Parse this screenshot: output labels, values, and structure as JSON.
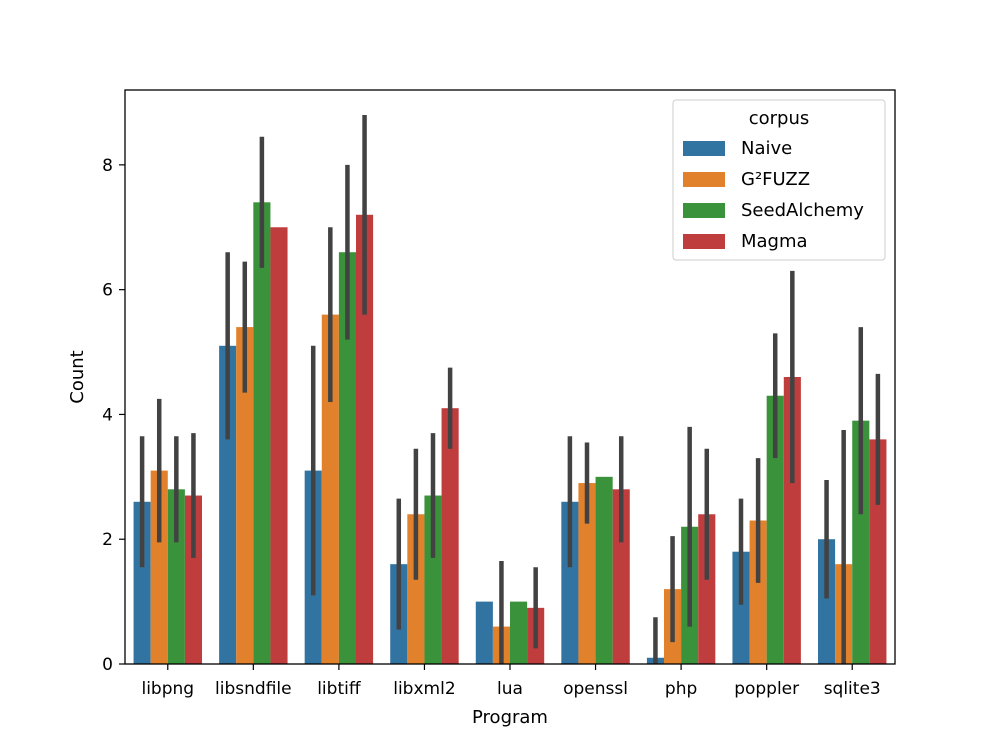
{
  "chart_data": {
    "type": "bar",
    "xlabel": "Program",
    "ylabel": "Count",
    "ylim": [
      0,
      9.2
    ],
    "yticks": [
      0,
      2,
      4,
      6,
      8
    ],
    "categories": [
      "libpng",
      "libsndfile",
      "libtiff",
      "libxml2",
      "lua",
      "openssl",
      "php",
      "poppler",
      "sqlite3"
    ],
    "legend": {
      "title": "corpus",
      "location": "top-right"
    },
    "series": [
      {
        "name": "Naive",
        "color": "#3274a1",
        "values": [
          2.6,
          5.1,
          3.1,
          1.6,
          1.0,
          2.6,
          0.1,
          1.8,
          2.0
        ],
        "err_low": [
          1.55,
          3.6,
          1.1,
          0.55,
          1.0,
          1.55,
          0.0,
          0.95,
          1.05
        ],
        "err_high": [
          3.65,
          6.6,
          5.1,
          2.65,
          1.0,
          3.65,
          0.75,
          2.65,
          2.95
        ]
      },
      {
        "name": "G²FUZZ",
        "color": "#e1812c",
        "values": [
          3.1,
          5.4,
          5.6,
          2.4,
          0.6,
          2.9,
          1.2,
          2.3,
          1.6
        ],
        "err_low": [
          1.95,
          4.35,
          4.2,
          1.35,
          0.0,
          2.25,
          0.35,
          1.3,
          0.0
        ],
        "err_high": [
          4.25,
          6.45,
          7.0,
          3.45,
          1.65,
          3.55,
          2.05,
          3.3,
          3.75
        ]
      },
      {
        "name": "SeedAlchemy",
        "color": "#3a923a",
        "values": [
          2.8,
          7.4,
          6.6,
          2.7,
          1.0,
          3.0,
          2.2,
          4.3,
          3.9
        ],
        "err_low": [
          1.95,
          6.35,
          5.2,
          1.7,
          1.0,
          3.0,
          0.6,
          3.3,
          2.4
        ],
        "err_high": [
          3.65,
          8.45,
          8.0,
          3.7,
          1.0,
          3.0,
          3.8,
          5.3,
          5.4
        ]
      },
      {
        "name": "Magma",
        "color": "#c03d3e",
        "values": [
          2.7,
          7.0,
          7.2,
          4.1,
          0.9,
          2.8,
          2.4,
          4.6,
          3.6
        ],
        "err_low": [
          1.7,
          7.0,
          5.6,
          3.45,
          0.25,
          1.95,
          1.35,
          2.9,
          2.55
        ],
        "err_high": [
          3.7,
          7.0,
          8.8,
          4.75,
          1.55,
          3.65,
          3.45,
          6.3,
          4.65
        ]
      }
    ]
  }
}
